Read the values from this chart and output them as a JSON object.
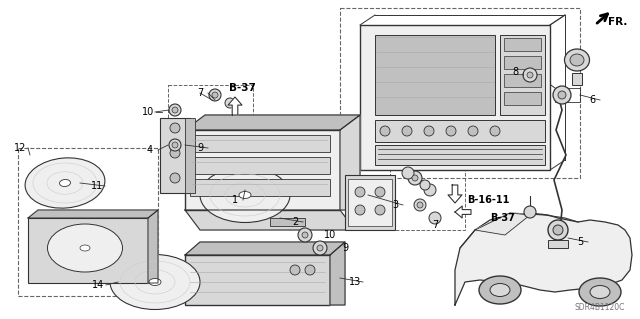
{
  "bg_color": "#ffffff",
  "line_color": "#333333",
  "text_color": "#000000",
  "fig_width": 6.4,
  "fig_height": 3.19,
  "dpi": 100,
  "watermark": "SDR4B1120C",
  "fr_label": "FR.",
  "b37_label": "B-37",
  "b1611_label": "B-16-11",
  "gray_fill": "#d8d8d8",
  "light_gray": "#efefef",
  "mid_gray": "#c0c0c0",
  "dark_gray": "#888888"
}
